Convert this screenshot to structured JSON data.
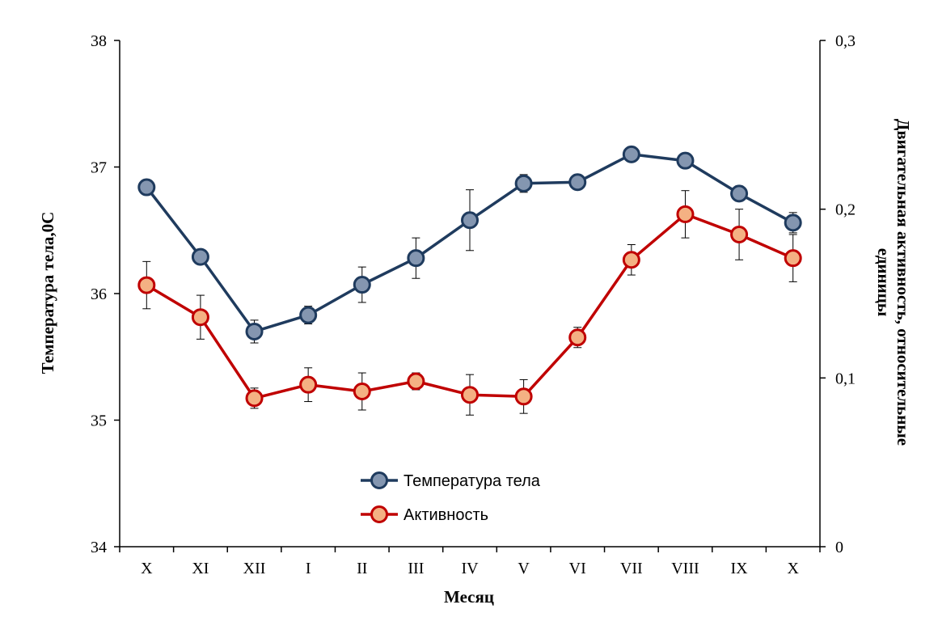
{
  "chart_data": {
    "type": "line",
    "categories": [
      "X",
      "XI",
      "XII",
      "I",
      "II",
      "III",
      "IV",
      "V",
      "VI",
      "VII",
      "VIII",
      "IX",
      "X"
    ],
    "xlabel": "Месяц",
    "ylabel_left": "Температура тела,0С",
    "ylabel_right": [
      "Двигательная активность, относительные",
      "единицы"
    ],
    "left_axis": {
      "min": 34,
      "max": 38,
      "ticks": [
        "34",
        "35",
        "36",
        "37",
        "38"
      ],
      "tick_values": [
        34,
        35,
        36,
        37,
        38
      ]
    },
    "right_axis": {
      "min": 0,
      "max": 0.3,
      "ticks": [
        "0",
        "0,1",
        "0,2",
        "0,3"
      ],
      "tick_values": [
        0,
        0.1,
        0.2,
        0.3
      ]
    },
    "legend": {
      "position": "bottom-center"
    },
    "series": [
      {
        "name": "Температура тела",
        "axis": "left",
        "line_color": "#1f3b5e",
        "marker_fill": "#8496b0",
        "marker_stroke": "#1f3b5e",
        "values": [
          36.84,
          36.29,
          35.7,
          35.83,
          36.07,
          36.28,
          36.58,
          36.87,
          36.88,
          37.1,
          37.05,
          36.79,
          36.56
        ],
        "errors": [
          null,
          0.05,
          0.09,
          0.07,
          0.14,
          0.16,
          0.24,
          0.07,
          null,
          null,
          null,
          0.06,
          0.08
        ]
      },
      {
        "name": "Активность",
        "axis": "right",
        "line_color": "#c00000",
        "marker_fill": "#f4b183",
        "marker_stroke": "#c00000",
        "values": [
          0.155,
          0.136,
          0.088,
          0.096,
          0.092,
          0.098,
          0.09,
          0.089,
          0.124,
          0.17,
          0.197,
          0.185,
          0.171
        ],
        "errors": [
          0.014,
          0.013,
          0.006,
          0.01,
          0.011,
          0.005,
          0.012,
          0.01,
          0.006,
          0.009,
          0.014,
          0.015,
          0.014
        ]
      }
    ]
  }
}
